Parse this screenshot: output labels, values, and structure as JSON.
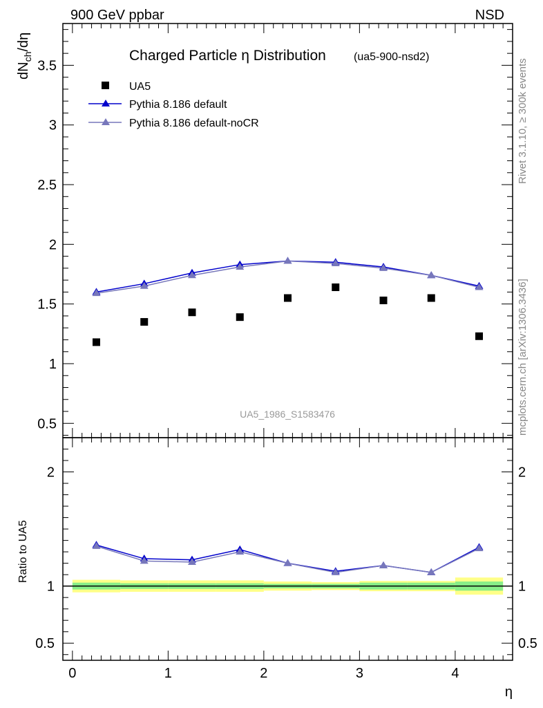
{
  "header": {
    "beam_label": "900 GeV ppbar",
    "process_label": "NSD"
  },
  "side_labels": {
    "rivet": "Rivet 3.1.10, ≥ 300k events",
    "mcplots": "mcplots.cern.ch [arXiv:1306.3436]"
  },
  "chart_data": [
    {
      "type": "scatter",
      "panel": "main",
      "title": "Charged Particle η Distribution",
      "subtitle": "(ua5-900-nsd2)",
      "analysis_label": "UA5_1986_S1583476",
      "xlabel": "η",
      "ylabel": "dNch/dη",
      "xlim": [
        -0.1,
        4.6
      ],
      "ylim": [
        0.38,
        3.85
      ],
      "x_ticks": [
        0,
        1,
        2,
        3,
        4
      ],
      "x_tick_labels": [
        "0",
        "1",
        "2",
        "3",
        "4"
      ],
      "y_ticks": [
        0.5,
        1,
        1.5,
        2,
        2.5,
        3,
        3.5
      ],
      "y_tick_labels": [
        "0.5",
        "1",
        "1.5",
        "2",
        "2.5",
        "3",
        "3.5"
      ],
      "legend_position": "top-left",
      "series": [
        {
          "name": "UA5",
          "marker": "square",
          "color": "#000000",
          "x": [
            0.25,
            0.75,
            1.25,
            1.75,
            2.25,
            2.75,
            3.25,
            3.75,
            4.25
          ],
          "values": [
            1.18,
            1.35,
            1.43,
            1.39,
            1.55,
            1.64,
            1.53,
            1.55,
            1.23
          ]
        },
        {
          "name": "Pythia 8.186 default",
          "marker": "triangle",
          "color": "#0000cc",
          "x": [
            0.25,
            0.75,
            1.25,
            1.75,
            2.25,
            2.75,
            3.25,
            3.75,
            4.25
          ],
          "values": [
            1.6,
            1.67,
            1.76,
            1.83,
            1.86,
            1.85,
            1.81,
            1.74,
            1.65
          ]
        },
        {
          "name": "Pythia 8.186 default-noCR",
          "marker": "triangle",
          "color": "#7777bb",
          "x": [
            0.25,
            0.75,
            1.25,
            1.75,
            2.25,
            2.75,
            3.25,
            3.75,
            4.25
          ],
          "values": [
            1.59,
            1.65,
            1.74,
            1.81,
            1.86,
            1.84,
            1.8,
            1.74,
            1.64
          ]
        }
      ]
    },
    {
      "type": "line",
      "panel": "ratio",
      "xlabel": "η",
      "ylabel": "Ratio to UA5",
      "xlim": [
        -0.1,
        4.6
      ],
      "ylim": [
        0.35,
        2.3
      ],
      "x_ticks": [
        0,
        1,
        2,
        3,
        4
      ],
      "x_tick_labels": [
        "0",
        "1",
        "2",
        "3",
        "4"
      ],
      "y_ticks": [
        0.5,
        1,
        2
      ],
      "y_tick_labels": [
        "0.5",
        "1",
        "2"
      ],
      "reference_line": 1,
      "error_bands": {
        "x_edges": [
          [
            0,
            0.5
          ],
          [
            0.5,
            1.0
          ],
          [
            1.0,
            1.5
          ],
          [
            1.5,
            2.0
          ],
          [
            2.0,
            2.5
          ],
          [
            2.5,
            3.0
          ],
          [
            3.0,
            3.5
          ],
          [
            3.5,
            4.0
          ],
          [
            4.0,
            4.5
          ]
        ],
        "inner": [
          0.03,
          0.025,
          0.025,
          0.025,
          0.02,
          0.02,
          0.03,
          0.03,
          0.04
        ],
        "outer": [
          0.055,
          0.05,
          0.05,
          0.05,
          0.04,
          0.035,
          0.045,
          0.045,
          0.075
        ],
        "inner_color": "#88ee88",
        "outer_color": "#ffff88"
      },
      "series": [
        {
          "name": "Pythia 8.186 default",
          "color": "#0000cc",
          "x": [
            0.25,
            0.75,
            1.25,
            1.75,
            2.25,
            2.75,
            3.25,
            3.75,
            4.25
          ],
          "values": [
            1.36,
            1.24,
            1.23,
            1.32,
            1.2,
            1.13,
            1.18,
            1.12,
            1.34
          ]
        },
        {
          "name": "Pythia 8.186 default-noCR",
          "color": "#7777bb",
          "x": [
            0.25,
            0.75,
            1.25,
            1.75,
            2.25,
            2.75,
            3.25,
            3.75,
            4.25
          ],
          "values": [
            1.35,
            1.22,
            1.21,
            1.3,
            1.2,
            1.12,
            1.18,
            1.12,
            1.33
          ]
        }
      ]
    }
  ]
}
